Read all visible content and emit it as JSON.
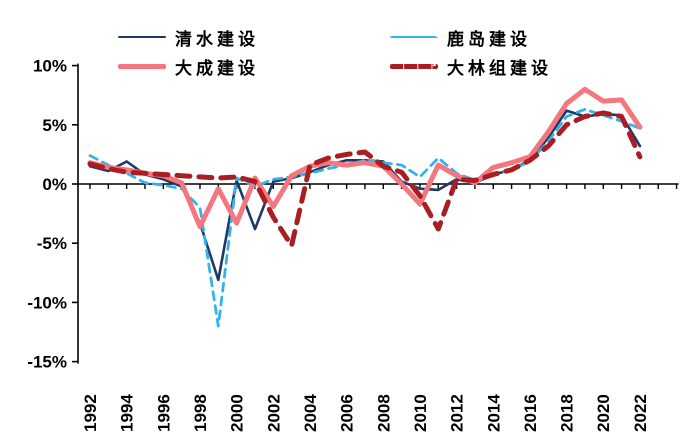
{
  "chart_data": {
    "type": "line",
    "x": [
      1992,
      1993,
      1994,
      1995,
      1996,
      1997,
      1998,
      1999,
      2000,
      2001,
      2002,
      2003,
      2004,
      2005,
      2006,
      2007,
      2008,
      2009,
      2010,
      2011,
      2012,
      2013,
      2014,
      2015,
      2016,
      2017,
      2018,
      2019,
      2020,
      2021,
      2022
    ],
    "series": [
      {
        "name": "清水建设",
        "color": "#1F3864",
        "style": "solid",
        "width": 2.6,
        "values": [
          1.5,
          1.1,
          1.9,
          0.8,
          0.4,
          -0.2,
          -3.3,
          -8.1,
          0.3,
          -3.8,
          0.2,
          0.5,
          1.0,
          1.6,
          2.0,
          2.0,
          1.9,
          0.2,
          -0.4,
          -0.5,
          0.4,
          0.1,
          0.8,
          1.2,
          2.0,
          3.9,
          6.2,
          5.7,
          5.9,
          5.8,
          3.2
        ]
      },
      {
        "name": "鹿岛建设",
        "color": "#33B3EC",
        "style": "dashed",
        "width": 2.8,
        "values": [
          2.4,
          1.6,
          0.9,
          0.1,
          -0.1,
          -0.4,
          -2.0,
          -12.0,
          0.5,
          -0.2,
          0.4,
          0.6,
          0.9,
          1.3,
          1.6,
          2.0,
          1.8,
          1.6,
          0.6,
          2.2,
          0.9,
          0.3,
          0.9,
          1.2,
          1.9,
          3.6,
          5.7,
          6.3,
          5.8,
          5.3,
          4.7
        ]
      },
      {
        "name": "大成建设",
        "color": "#F4767E",
        "style": "solid",
        "width": 5,
        "values": [
          1.8,
          1.4,
          1.2,
          0.9,
          0.7,
          0.1,
          -3.6,
          -0.4,
          -3.3,
          0.5,
          -1.9,
          0.7,
          1.5,
          1.8,
          1.6,
          1.8,
          1.5,
          0.0,
          -1.7,
          1.6,
          0.7,
          0.1,
          1.4,
          1.8,
          2.3,
          4.4,
          6.8,
          8.0,
          7.0,
          7.1,
          4.8
        ]
      },
      {
        "name": "大林组建设",
        "color": "#A91E22",
        "style": "dashed",
        "width": 5,
        "values": [
          1.7,
          1.3,
          1.0,
          0.9,
          0.8,
          0.7,
          0.6,
          0.5,
          0.6,
          0.2,
          -2.8,
          -5.2,
          1.6,
          2.2,
          2.5,
          2.7,
          1.5,
          1.0,
          -1.0,
          -3.8,
          0.4,
          0.3,
          0.8,
          1.2,
          2.0,
          3.2,
          5.0,
          5.7,
          6.0,
          5.7,
          2.3
        ]
      }
    ],
    "title": "",
    "xlabel": "",
    "ylabel": "",
    "ylim": [
      -15,
      10
    ],
    "yticks": [
      "10%",
      "5%",
      "0%",
      "-5%",
      "-10%",
      "-15%"
    ],
    "ytick_values": [
      10,
      5,
      0,
      -5,
      -10,
      -15
    ],
    "xtick_labels": [
      "1992",
      "1994",
      "1996",
      "1998",
      "2000",
      "2002",
      "2004",
      "2006",
      "2008",
      "2010",
      "2012",
      "2014",
      "2016",
      "2018",
      "2020",
      "2022"
    ],
    "grid": false,
    "legend_position": "top",
    "axis_color": "#000000",
    "background": "#FFFFFF"
  },
  "legend": {
    "items": [
      {
        "label": "清水建设",
        "series_index": 0
      },
      {
        "label": "鹿岛建设",
        "series_index": 1
      },
      {
        "label": "大成建设",
        "series_index": 2
      },
      {
        "label": "大林组建设",
        "series_index": 3
      }
    ]
  }
}
